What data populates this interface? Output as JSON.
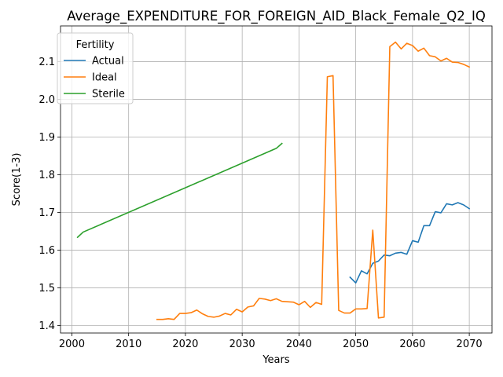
{
  "chart_data": {
    "type": "line",
    "title": "Average_EXPENDITURE_FOR_FOREIGN_AID_Black_Female_Q2_IQ",
    "xlabel": "Years",
    "ylabel": "Score(1-3)",
    "xlim": [
      1998,
      2074
    ],
    "ylim": [
      1.38,
      2.195
    ],
    "xticks": [
      2000,
      2010,
      2020,
      2030,
      2040,
      2050,
      2060,
      2070
    ],
    "yticks": [
      1.4,
      1.5,
      1.6,
      1.7,
      1.8,
      1.9,
      2.0,
      2.1
    ],
    "ytick_labels": [
      "1.4",
      "1.5",
      "1.6",
      "1.7",
      "1.8",
      "1.9",
      "2.0",
      "2.1"
    ],
    "grid": true,
    "legend": {
      "title": "Fertility",
      "placement": "top-left"
    },
    "series": [
      {
        "name": "Actual",
        "color": "#1f77b4",
        "x": [
          2049,
          2050,
          2051,
          2052,
          2053,
          2054,
          2055,
          2056,
          2057,
          2058,
          2059,
          2060,
          2061,
          2062,
          2063,
          2064,
          2065,
          2066,
          2067,
          2068,
          2069,
          2070
        ],
        "y": [
          1.528,
          1.513,
          1.545,
          1.537,
          1.565,
          1.571,
          1.587,
          1.585,
          1.592,
          1.594,
          1.589,
          1.625,
          1.621,
          1.665,
          1.665,
          1.702,
          1.699,
          1.723,
          1.72,
          1.726,
          1.72,
          1.71
        ]
      },
      {
        "name": "Ideal",
        "color": "#ff7f0e",
        "x": [
          2015,
          2016,
          2017,
          2018,
          2019,
          2020,
          2021,
          2022,
          2023,
          2024,
          2025,
          2026,
          2027,
          2028,
          2029,
          2030,
          2031,
          2032,
          2033,
          2034,
          2035,
          2036,
          2037,
          2038,
          2039,
          2040,
          2041,
          2042,
          2043,
          2044,
          2045,
          2046,
          2047,
          2048,
          2049,
          2050,
          2051,
          2052,
          2053,
          2054,
          2055,
          2056,
          2057,
          2058,
          2059,
          2060,
          2061,
          2062,
          2063,
          2064,
          2065,
          2066,
          2067,
          2068,
          2069,
          2070
        ],
        "y": [
          1.416,
          1.416,
          1.418,
          1.416,
          1.432,
          1.432,
          1.434,
          1.441,
          1.431,
          1.424,
          1.422,
          1.425,
          1.432,
          1.428,
          1.443,
          1.436,
          1.449,
          1.452,
          1.472,
          1.47,
          1.466,
          1.471,
          1.464,
          1.463,
          1.462,
          1.455,
          1.464,
          1.448,
          1.461,
          1.456,
          2.06,
          2.063,
          1.44,
          1.433,
          1.433,
          1.444,
          1.444,
          1.445,
          1.653,
          1.42,
          1.422,
          2.14,
          2.152,
          2.134,
          2.149,
          2.143,
          2.128,
          2.136,
          2.116,
          2.113,
          2.102,
          2.109,
          2.099,
          2.098,
          2.093,
          2.086
        ]
      },
      {
        "name": "Sterile",
        "color": "#2ca02c",
        "x": [
          2001,
          2002,
          2036,
          2037
        ],
        "y": [
          1.634,
          1.648,
          1.87,
          1.883
        ]
      }
    ]
  }
}
